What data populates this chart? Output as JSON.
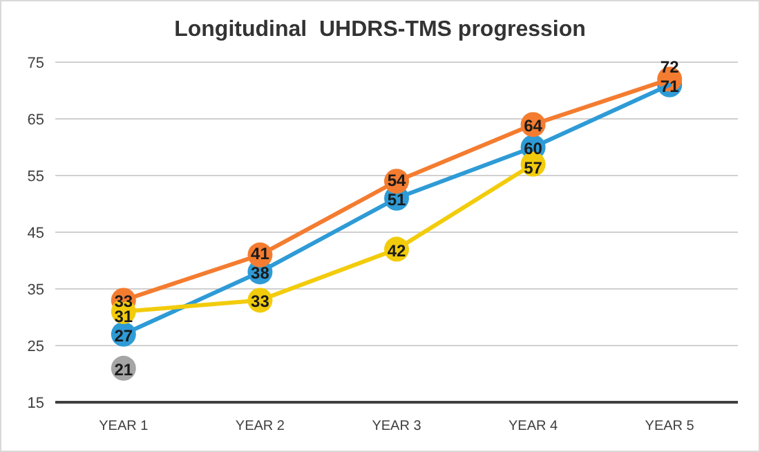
{
  "chart_data": {
    "type": "line",
    "title": "Longitudinal  UHDRS-TMS progression",
    "categories": [
      "YEAR 1",
      "YEAR 2",
      "YEAR 3",
      "YEAR 4",
      "YEAR 5"
    ],
    "series": [
      {
        "color": "#2e9bd6",
        "values": [
          27,
          38,
          51,
          60,
          71
        ]
      },
      {
        "color": "#f47c30",
        "values": [
          33,
          41,
          54,
          64,
          72
        ]
      },
      {
        "color": "#f2cc0c",
        "values": [
          31,
          33,
          42,
          57,
          null
        ]
      },
      {
        "color": "#a5a5a5",
        "values": [
          21,
          null,
          null,
          null,
          null
        ]
      }
    ],
    "ylim": [
      15,
      75
    ],
    "yticks": [
      15,
      25,
      35,
      45,
      55,
      65,
      75
    ],
    "grid": "y",
    "marker": "circle",
    "line_style": "solid",
    "data_labels": true
  }
}
